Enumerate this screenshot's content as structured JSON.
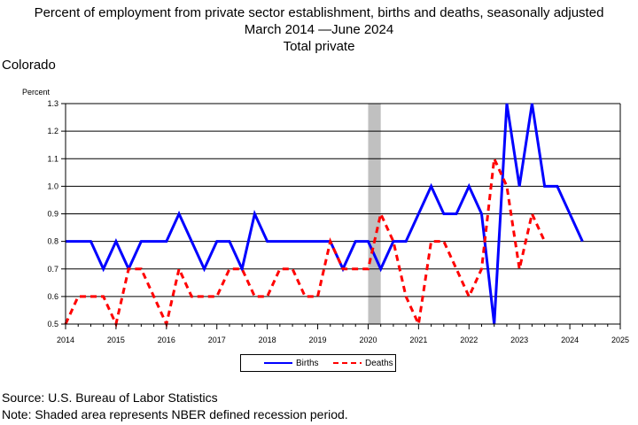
{
  "title": {
    "line1": "Percent of employment from private sector establishment, births and deaths, seasonally adjusted",
    "line2": "March 2014 —June 2024",
    "line3": "Total private"
  },
  "region": "Colorado",
  "source": "Source: U.S. Bureau of Labor Statistics",
  "note": "Note: Shaded area represents NBER defined recession period.",
  "colors": {
    "births": "#0000ff",
    "deaths": "#ff0000",
    "recession": "#c0c0c0"
  },
  "chart_data": {
    "type": "line",
    "ylabel": "Percent",
    "ylim": [
      0.5,
      1.3
    ],
    "xlim": [
      2014,
      2025
    ],
    "yticks": [
      "0.5",
      "0.6",
      "0.7",
      "0.8",
      "0.9",
      "1.0",
      "1.1",
      "1.2",
      "1.3"
    ],
    "xticks": [
      "2014",
      "2015",
      "2016",
      "2017",
      "2018",
      "2019",
      "2020",
      "2021",
      "2022",
      "2023",
      "2024",
      "2025"
    ],
    "grid": "horizontal",
    "legend_position": "bottom",
    "recession": [
      2020.0,
      2020.25
    ],
    "series": [
      {
        "name": "Births",
        "style": "solid",
        "x": [
          2014.0,
          2014.25,
          2014.5,
          2014.75,
          2015.0,
          2015.25,
          2015.5,
          2015.75,
          2016.0,
          2016.25,
          2016.5,
          2016.75,
          2017.0,
          2017.25,
          2017.5,
          2017.75,
          2018.0,
          2018.25,
          2018.5,
          2018.75,
          2019.0,
          2019.25,
          2019.5,
          2019.75,
          2020.0,
          2020.25,
          2020.5,
          2020.75,
          2021.0,
          2021.25,
          2021.5,
          2021.75,
          2022.0,
          2022.25,
          2022.5,
          2022.75,
          2023.0,
          2023.25,
          2023.5,
          2023.75,
          2024.0,
          2024.25
        ],
        "values": [
          0.8,
          0.8,
          0.8,
          0.7,
          0.8,
          0.7,
          0.8,
          0.8,
          0.8,
          0.9,
          0.8,
          0.7,
          0.8,
          0.8,
          0.7,
          0.9,
          0.8,
          0.8,
          0.8,
          0.8,
          0.8,
          0.8,
          0.7,
          0.8,
          0.8,
          0.7,
          0.8,
          0.8,
          0.9,
          1.0,
          0.9,
          0.9,
          1.0,
          0.9,
          0.5,
          1.3,
          1.0,
          1.3,
          1.0,
          1.0,
          0.9,
          0.8
        ]
      },
      {
        "name": "Deaths",
        "style": "dashed",
        "x": [
          2014.0,
          2014.25,
          2014.5,
          2014.75,
          2015.0,
          2015.25,
          2015.5,
          2015.75,
          2016.0,
          2016.25,
          2016.5,
          2016.75,
          2017.0,
          2017.25,
          2017.5,
          2017.75,
          2018.0,
          2018.25,
          2018.5,
          2018.75,
          2019.0,
          2019.25,
          2019.5,
          2019.75,
          2020.0,
          2020.25,
          2020.5,
          2020.75,
          2021.0,
          2021.25,
          2021.5,
          2021.75,
          2022.0,
          2022.25,
          2022.5,
          2022.75,
          2023.0,
          2023.25,
          2023.5
        ],
        "values": [
          0.5,
          0.6,
          0.6,
          0.6,
          0.5,
          0.7,
          0.7,
          0.6,
          0.5,
          0.7,
          0.6,
          0.6,
          0.6,
          0.7,
          0.7,
          0.6,
          0.6,
          0.7,
          0.7,
          0.6,
          0.6,
          0.8,
          0.7,
          0.7,
          0.7,
          0.9,
          0.8,
          0.6,
          0.5,
          0.8,
          0.8,
          0.7,
          0.6,
          0.7,
          1.1,
          1.0,
          0.7,
          0.9,
          0.8
        ]
      }
    ]
  }
}
